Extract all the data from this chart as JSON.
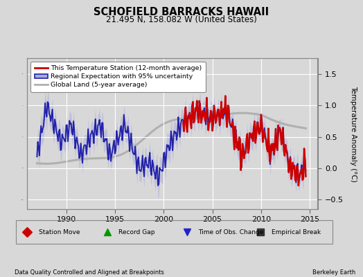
{
  "title": "SCHOFIELD BARRACKS HAWAII",
  "subtitle": "21.495 N, 158.082 W (United States)",
  "ylabel": "Temperature Anomaly (°C)",
  "xlabel_left": "Data Quality Controlled and Aligned at Breakpoints",
  "xlabel_right": "Berkeley Earth",
  "ylim": [
    -0.65,
    1.75
  ],
  "xlim": [
    1986.0,
    2015.8
  ],
  "yticks": [
    -0.5,
    0,
    0.5,
    1.0,
    1.5
  ],
  "xticks": [
    1990,
    1995,
    2000,
    2005,
    2010,
    2015
  ],
  "bg_color": "#d8d8d8",
  "plot_bg_color": "#d8d8d8",
  "grid_color": "#ffffff",
  "fill_color": "#aaaadd",
  "fill_alpha": 0.5,
  "station_color": "#cc0000",
  "regional_color": "#2222aa",
  "global_color": "#b0b0b0",
  "legend1_items": [
    {
      "label": "This Temperature Station (12-month average)",
      "color": "#cc0000",
      "lw": 2
    },
    {
      "label": "Regional Expectation with 95% uncertainty",
      "color": "#2222aa",
      "lw": 2
    },
    {
      "label": "Global Land (5-year average)",
      "color": "#b0b0b0",
      "lw": 2
    }
  ],
  "legend2_items": [
    {
      "label": "Station Move",
      "marker": "D",
      "color": "#cc0000"
    },
    {
      "label": "Record Gap",
      "marker": "^",
      "color": "#009900"
    },
    {
      "label": "Time of Obs. Change",
      "marker": "v",
      "color": "#2222cc"
    },
    {
      "label": "Empirical Break",
      "marker": "s",
      "color": "#333333"
    }
  ]
}
